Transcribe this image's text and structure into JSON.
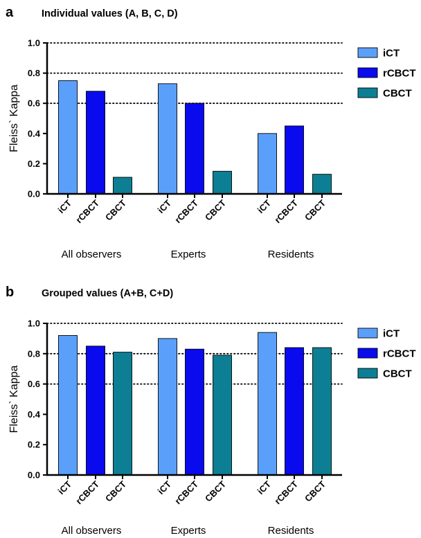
{
  "colors": {
    "iCT": "#5aa0fb",
    "rCBCT": "#0a0aee",
    "CBCT": "#0c7f94"
  },
  "chart_data": [
    {
      "panel": "a",
      "type": "bar",
      "title": "Individual values (A, B, C, D)",
      "ylabel": "Fleiss` Kappa",
      "ylim": [
        0,
        1.0
      ],
      "yticks": [
        "0.0",
        "0.2",
        "0.4",
        "0.6",
        "0.8",
        "1.0"
      ],
      "gridlines": [
        0.6,
        0.8,
        1.0
      ],
      "groups": [
        "All observers",
        "Experts",
        "Residents"
      ],
      "categories": [
        "iCT",
        "rCBCT",
        "CBCT"
      ],
      "series": [
        {
          "name": "iCT",
          "values": [
            0.75,
            0.73,
            0.4
          ]
        },
        {
          "name": "rCBCT",
          "values": [
            0.68,
            0.6,
            0.45
          ]
        },
        {
          "name": "CBCT",
          "values": [
            0.11,
            0.15,
            0.13
          ]
        }
      ],
      "legend": [
        "iCT",
        "rCBCT",
        "CBCT"
      ],
      "legend_position": "right"
    },
    {
      "panel": "b",
      "type": "bar",
      "title": "Grouped values (A+B, C+D)",
      "ylabel": "Fleiss` Kappa",
      "ylim": [
        0,
        1.0
      ],
      "yticks": [
        "0.0",
        "0.2",
        "0.4",
        "0.6",
        "0.8",
        "1.0"
      ],
      "gridlines": [
        0.6,
        0.8,
        1.0
      ],
      "groups": [
        "All observers",
        "Experts",
        "Residents"
      ],
      "categories": [
        "iCT",
        "rCBCT",
        "CBCT"
      ],
      "series": [
        {
          "name": "iCT",
          "values": [
            0.92,
            0.9,
            0.94
          ]
        },
        {
          "name": "rCBCT",
          "values": [
            0.85,
            0.83,
            0.84
          ]
        },
        {
          "name": "CBCT",
          "values": [
            0.81,
            0.79,
            0.84
          ]
        }
      ],
      "legend": [
        "iCT",
        "rCBCT",
        "CBCT"
      ],
      "legend_position": "right"
    }
  ]
}
